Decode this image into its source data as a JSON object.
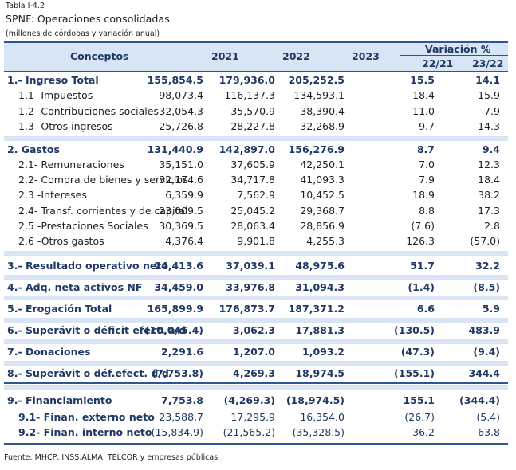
{
  "caption": {
    "table_number": "Tabla I-4.2",
    "title": "SPNF: Operaciones consolidadas",
    "subtitle": "(millones de córdobas y variación anual)"
  },
  "header": {
    "concepts": "Conceptos",
    "y2021": "2021",
    "y2022": "2022",
    "y2023": "2023",
    "variation": "Variación %",
    "v1": "22/21",
    "v2": "23/22"
  },
  "rows": [
    {
      "label": "1.- Ingreso Total",
      "v2021": "155,854.5",
      "v2022": "179,936.0",
      "v2023": "205,252.5",
      "var1": "15.5",
      "var2": "14.1"
    },
    {
      "label": "1.1- Impuestos",
      "v2021": "98,073.4",
      "v2022": "116,137.3",
      "v2023": "134,593.1",
      "var1": "18.4",
      "var2": "15.9"
    },
    {
      "label": "1.2- Contribuciones sociales",
      "v2021": "32,054.3",
      "v2022": "35,570.9",
      "v2023": "38,390.4",
      "var1": "11.0",
      "var2": "7.9"
    },
    {
      "label": "1.3- Otros ingresos",
      "v2021": "25,726.8",
      "v2022": "28,227.8",
      "v2023": "32,268.9",
      "var1": "9.7",
      "var2": "14.3"
    },
    {
      "label": "2. Gastos",
      "v2021": "131,440.9",
      "v2022": "142,897.0",
      "v2023": "156,276.9",
      "var1": "8.7",
      "var2": "9.4"
    },
    {
      "label": "2.1- Remuneraciones",
      "v2021": "35,151.0",
      "v2022": "37,605.9",
      "v2023": "42,250.1",
      "var1": "7.0",
      "var2": "12.3"
    },
    {
      "label": "2.2- Compra de bienes y servicios",
      "v2021": "32,174.6",
      "v2022": "34,717.8",
      "v2023": "41,093.3",
      "var1": "7.9",
      "var2": "18.4"
    },
    {
      "label": "2.3 -Intereses",
      "v2021": "6,359.9",
      "v2022": "7,562.9",
      "v2023": "10,452.5",
      "var1": "18.9",
      "var2": "38.2"
    },
    {
      "label": "2.4- Transf. corrientes y de capital",
      "v2021": "23,009.5",
      "v2022": "25,045.2",
      "v2023": "29,368.7",
      "var1": "8.8",
      "var2": "17.3"
    },
    {
      "label": "2.5 -Prestaciones Sociales",
      "v2021": "30,369.5",
      "v2022": "28,063.4",
      "v2023": "28,856.9",
      "var1": "(7.6)",
      "var2": "2.8"
    },
    {
      "label": "2.6 -Otros gastos",
      "v2021": "4,376.4",
      "v2022": "9,901.8",
      "v2023": "4,255.3",
      "var1": "126.3",
      "var2": "(57.0)"
    },
    {
      "label": "3.- Resultado operativo neto",
      "v2021": "24,413.6",
      "v2022": "37,039.1",
      "v2023": "48,975.6",
      "var1": "51.7",
      "var2": "32.2"
    },
    {
      "label": "4.- Adq. neta activos NF",
      "v2021": "34,459.0",
      "v2022": "33,976.8",
      "v2023": "31,094.3",
      "var1": "(1.4)",
      "var2": "(8.5)"
    },
    {
      "label": "5.- Erogación Total",
      "v2021": "165,899.9",
      "v2022": "176,873.7",
      "v2023": "187,371.2",
      "var1": "6.6",
      "var2": "5.9"
    },
    {
      "label": "6.- Superávit o déficit efect. a/d",
      "v2021": "(10,045.4)",
      "v2022": "3,062.3",
      "v2023": "17,881.3",
      "var1": "(130.5)",
      "var2": "483.9"
    },
    {
      "label": "7.- Donaciones",
      "v2021": "2,291.6",
      "v2022": "1,207.0",
      "v2023": "1,093.2",
      "var1": "(47.3)",
      "var2": "(9.4)"
    },
    {
      "label": "8.- Superávit o déf.efect. d/d",
      "v2021": "(7,753.8)",
      "v2022": "4,269.3",
      "v2023": "18,974.5",
      "var1": "(155.1)",
      "var2": "344.4"
    },
    {
      "label": "9.- Financiamiento",
      "v2021": "7,753.8",
      "v2022": "(4,269.3)",
      "v2023": "(18,974.5)",
      "var1": "155.1",
      "var2": "(344.4)"
    },
    {
      "label": "9.1- Finan. externo neto",
      "v2021": "23,588.7",
      "v2022": "17,295.9",
      "v2023": "16,354.0",
      "var1": "(26.7)",
      "var2": "(5.4)"
    },
    {
      "label": "9.2- Finan. interno neto",
      "v2021": "(15,834.9)",
      "v2022": "(21,565.2)",
      "v2023": "(35,328.5)",
      "var1": "36.2",
      "var2": "63.8"
    }
  ],
  "footnote": "Fuente: MHCP, INSS,ALMA, TELCOR y empresas públicas."
}
